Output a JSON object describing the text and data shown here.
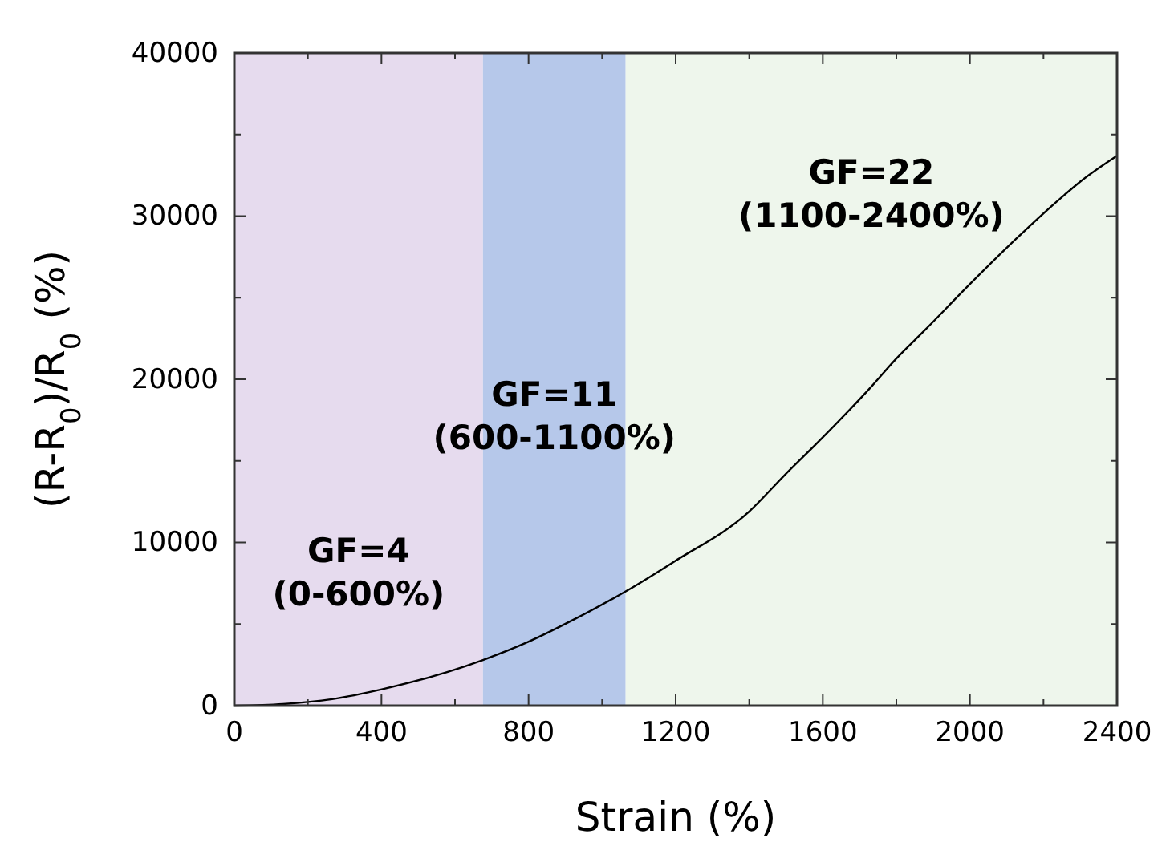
{
  "chart_data": {
    "type": "line",
    "xlabel": "Strain (%)",
    "ylabel": "(R-R$_{0}$)/R$_{0}$ (%)",
    "xlim": [
      0,
      2400
    ],
    "xticks": [
      0,
      400,
      800,
      1200,
      1600,
      2000,
      2400
    ],
    "ylim": [
      0,
      40000
    ],
    "yticks": [
      0,
      10000,
      20000,
      30000,
      40000
    ],
    "grid": false,
    "series": [
      {
        "color": "#000000",
        "x": [
          0,
          132,
          266,
          401,
          676,
          798,
          925,
          1064,
          1194,
          1400,
          1495,
          1607,
          1734,
          1797,
          1877,
          2003,
          2130,
          2257,
          2305,
          2400
        ],
        "values": [
          0,
          100,
          400,
          1000,
          2800,
          3900,
          5300,
          7000,
          8800,
          11900,
          14100,
          16600,
          19600,
          21200,
          23000,
          25900,
          28700,
          31300,
          32200,
          33700
        ]
      }
    ],
    "bands": [
      {
        "axis": "x",
        "from": 0,
        "to": 676,
        "label": "GF=4\n(0-600%)",
        "color": "#e6dbee"
      },
      {
        "axis": "x",
        "from": 676,
        "to": 1064,
        "label": "GF=11\n(600-1100%)",
        "color": "#b6c8ea"
      },
      {
        "axis": "x",
        "from": 1064,
        "to": 2400,
        "label": "GF=22\n(1100-2400%)",
        "color": "#eef6ec"
      }
    ]
  }
}
